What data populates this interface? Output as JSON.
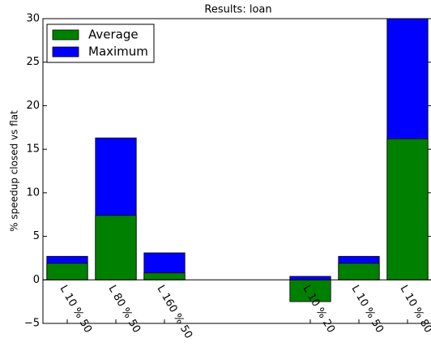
{
  "chart_data": {
    "type": "bar",
    "title": "Results: loan",
    "y_label": "% speedup closed vs flat",
    "categories": [
      "L 10 % 50",
      "L 80 % 50",
      "L 160 % 50",
      null,
      null,
      "L 10 % 20",
      "L 10 % 50",
      "L 10 % 80"
    ],
    "series": [
      {
        "name": "Average",
        "color": "#008000",
        "values": [
          1.9,
          7.4,
          0.8,
          null,
          null,
          -2.5,
          1.9,
          16.2
        ]
      },
      {
        "name": "Maximum",
        "color": "#0000ff",
        "values": [
          2.7,
          16.3,
          3.1,
          null,
          null,
          0.4,
          2.7,
          30.0
        ]
      }
    ],
    "ylim": [
      -5,
      30
    ],
    "yticks": [
      {
        "value": -5,
        "label": "−5"
      },
      0,
      5,
      10,
      15,
      20,
      25,
      30
    ],
    "legend": "upper left"
  }
}
